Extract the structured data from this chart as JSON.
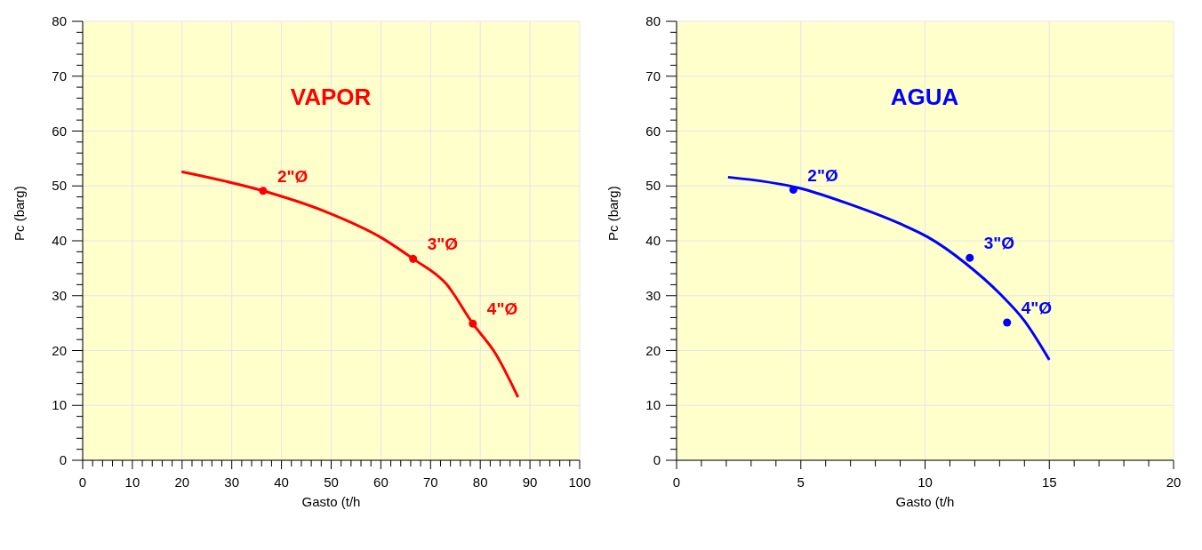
{
  "chart_data": [
    {
      "type": "line",
      "title": "VAPOR",
      "xlabel": "Gasto (t/h",
      "ylabel": "Pc (barg)",
      "xlim": [
        0,
        100
      ],
      "ylim": [
        0,
        80
      ],
      "xticks": [
        0,
        {
          "value": 2,
          "label": null
        },
        {
          "value": 4,
          "label": null
        },
        {
          "value": 6,
          "label": null
        },
        {
          "value": 8,
          "label": null
        },
        10,
        {
          "value": 12,
          "label": null
        },
        {
          "value": 14,
          "label": null
        },
        {
          "value": 16,
          "label": null
        },
        {
          "value": 18,
          "label": null
        },
        20,
        {
          "value": 22,
          "label": null
        },
        {
          "value": 24,
          "label": null
        },
        {
          "value": 26,
          "label": null
        },
        {
          "value": 28,
          "label": null
        },
        30,
        {
          "value": 32,
          "label": null
        },
        {
          "value": 34,
          "label": null
        },
        {
          "value": 36,
          "label": null
        },
        {
          "value": 38,
          "label": null
        },
        40,
        {
          "value": 42,
          "label": null
        },
        {
          "value": 44,
          "label": null
        },
        {
          "value": 46,
          "label": null
        },
        {
          "value": 48,
          "label": null
        },
        50,
        {
          "value": 52,
          "label": null
        },
        {
          "value": 54,
          "label": null
        },
        {
          "value": 56,
          "label": null
        },
        {
          "value": 58,
          "label": null
        },
        60,
        {
          "value": 62,
          "label": null
        },
        {
          "value": 64,
          "label": null
        },
        {
          "value": 66,
          "label": null
        },
        {
          "value": 68,
          "label": null
        },
        70,
        {
          "value": 72,
          "label": null
        },
        {
          "value": 74,
          "label": null
        },
        {
          "value": 76,
          "label": null
        },
        {
          "value": 78,
          "label": null
        },
        80,
        {
          "value": 82,
          "label": null
        },
        {
          "value": 84,
          "label": null
        },
        {
          "value": 86,
          "label": null
        },
        {
          "value": 88,
          "label": null
        },
        90,
        {
          "value": 92,
          "label": null
        },
        {
          "value": 94,
          "label": null
        },
        {
          "value": 96,
          "label": null
        },
        {
          "value": 98,
          "label": null
        },
        100
      ],
      "yticks": [
        0,
        {
          "value": 2,
          "label": null
        },
        {
          "value": 4,
          "label": null
        },
        {
          "value": 6,
          "label": null
        },
        {
          "value": 8,
          "label": null
        },
        10,
        {
          "value": 12,
          "label": null
        },
        {
          "value": 14,
          "label": null
        },
        {
          "value": 16,
          "label": null
        },
        {
          "value": 18,
          "label": null
        },
        20,
        {
          "value": 22,
          "label": null
        },
        {
          "value": 24,
          "label": null
        },
        {
          "value": 26,
          "label": null
        },
        {
          "value": 28,
          "label": null
        },
        30,
        {
          "value": 32,
          "label": null
        },
        {
          "value": 34,
          "label": null
        },
        {
          "value": 36,
          "label": null
        },
        {
          "value": 38,
          "label": null
        },
        40,
        {
          "value": 42,
          "label": null
        },
        {
          "value": 44,
          "label": null
        },
        {
          "value": 46,
          "label": null
        },
        {
          "value": 48,
          "label": null
        },
        50,
        {
          "value": 52,
          "label": null
        },
        {
          "value": 54,
          "label": null
        },
        {
          "value": 56,
          "label": null
        },
        {
          "value": 58,
          "label": null
        },
        60,
        {
          "value": 62,
          "label": null
        },
        {
          "value": 64,
          "label": null
        },
        {
          "value": 66,
          "label": null
        },
        {
          "value": 68,
          "label": null
        },
        70,
        {
          "value": 72,
          "label": null
        },
        {
          "value": 74,
          "label": null
        },
        {
          "value": 76,
          "label": null
        },
        {
          "value": 78,
          "label": null
        },
        80
      ],
      "grid": true,
      "legend": false,
      "series": [
        {
          "type": "line",
          "color": "#ff0000",
          "marker": "none",
          "line_style": "solid",
          "x": [
            19.9,
            36.3,
            48.6,
            60.2,
            66.5,
            73.2,
            78.5,
            83.1,
            87.6
          ],
          "values": [
            52.6,
            49.1,
            45.4,
            40.5,
            36.7,
            32.1,
            24.9,
            19.4,
            11.5
          ]
        },
        {
          "type": "scatter",
          "color": "#ff0000",
          "marker": "circle",
          "x": [
            36.3,
            66.5,
            78.5
          ],
          "values": [
            49.1,
            36.7,
            24.9
          ]
        }
      ],
      "annotations": [
        {
          "text": "2\"Ø",
          "x": 36.3,
          "y": 49.1
        },
        {
          "text": "3\"Ø",
          "x": 66.5,
          "y": 36.7
        },
        {
          "text": "4\"Ø",
          "x": 78.5,
          "y": 24.9
        }
      ]
    },
    {
      "type": "line",
      "title": "AGUA",
      "xlabel": "Gasto (t/h",
      "ylabel": "Pc (barg)",
      "xlim": [
        0,
        20
      ],
      "ylim": [
        0,
        80
      ],
      "xticks": [
        0,
        {
          "value": 1,
          "label": null
        },
        {
          "value": 2,
          "label": null
        },
        {
          "value": 3,
          "label": null
        },
        {
          "value": 4,
          "label": null
        },
        5,
        {
          "value": 6,
          "label": null
        },
        {
          "value": 7,
          "label": null
        },
        {
          "value": 8,
          "label": null
        },
        {
          "value": 9,
          "label": null
        },
        10,
        {
          "value": 11,
          "label": null
        },
        {
          "value": 12,
          "label": null
        },
        {
          "value": 13,
          "label": null
        },
        {
          "value": 14,
          "label": null
        },
        15,
        {
          "value": 16,
          "label": null
        },
        {
          "value": 17,
          "label": null
        },
        {
          "value": 18,
          "label": null
        },
        {
          "value": 19,
          "label": null
        },
        20
      ],
      "yticks": [
        0,
        {
          "value": 2,
          "label": null
        },
        {
          "value": 4,
          "label": null
        },
        {
          "value": 6,
          "label": null
        },
        {
          "value": 8,
          "label": null
        },
        10,
        {
          "value": 12,
          "label": null
        },
        {
          "value": 14,
          "label": null
        },
        {
          "value": 16,
          "label": null
        },
        {
          "value": 18,
          "label": null
        },
        20,
        {
          "value": 22,
          "label": null
        },
        {
          "value": 24,
          "label": null
        },
        {
          "value": 26,
          "label": null
        },
        {
          "value": 28,
          "label": null
        },
        30,
        {
          "value": 32,
          "label": null
        },
        {
          "value": 34,
          "label": null
        },
        {
          "value": 36,
          "label": null
        },
        {
          "value": 38,
          "label": null
        },
        40,
        {
          "value": 42,
          "label": null
        },
        {
          "value": 44,
          "label": null
        },
        {
          "value": 46,
          "label": null
        },
        {
          "value": 48,
          "label": null
        },
        50,
        {
          "value": 52,
          "label": null
        },
        {
          "value": 54,
          "label": null
        },
        {
          "value": 56,
          "label": null
        },
        {
          "value": 58,
          "label": null
        },
        60,
        {
          "value": 62,
          "label": null
        },
        {
          "value": 64,
          "label": null
        },
        {
          "value": 66,
          "label": null
        },
        {
          "value": 68,
          "label": null
        },
        70,
        {
          "value": 72,
          "label": null
        },
        {
          "value": 74,
          "label": null
        },
        {
          "value": 76,
          "label": null
        },
        {
          "value": 78,
          "label": null
        },
        80
      ],
      "grid": true,
      "legend": false,
      "series": [
        {
          "type": "line",
          "color": "#0000ff",
          "marker": "none",
          "line_style": "solid",
          "x": [
            2.07,
            4.95,
            6.95,
            9.05,
            10.1,
            11.6,
            13.0,
            14.0,
            15.0
          ],
          "values": [
            51.6,
            49.6,
            46.7,
            43.0,
            40.7,
            36.0,
            30.4,
            25.4,
            18.3
          ]
        },
        {
          "type": "scatter",
          "color": "#0000ff",
          "marker": "circle",
          "x": [
            4.7,
            11.8,
            13.3
          ],
          "values": [
            49.3,
            36.9,
            25.1
          ]
        }
      ],
      "annotations": [
        {
          "text": "2\"Ø",
          "x": 4.7,
          "y": 49.3
        },
        {
          "text": "3\"Ø",
          "x": 11.8,
          "y": 36.9
        },
        {
          "text": "4\"Ø",
          "x": 13.3,
          "y": 25.1
        }
      ]
    }
  ]
}
